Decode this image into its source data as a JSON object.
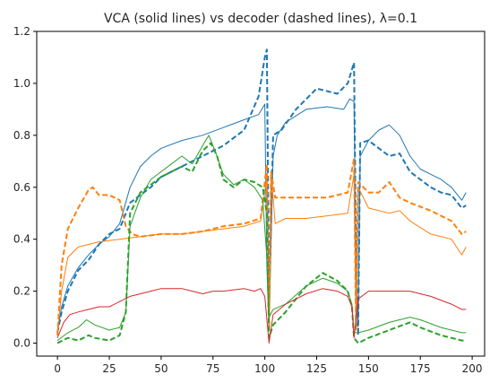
{
  "chart_data": {
    "type": "line",
    "title": "VCA (solid lines) vs decoder (dashed lines), λ=0.1",
    "xlabel": "",
    "ylabel": "",
    "xlim": [
      -10,
      206
    ],
    "ylim": [
      -0.05,
      1.2
    ],
    "xticks": [
      0,
      25,
      50,
      75,
      100,
      125,
      150,
      175,
      200
    ],
    "yticks": [
      0.0,
      0.2,
      0.4,
      0.6,
      0.8,
      1.0,
      1.2
    ],
    "xtick_labels": [
      "0",
      "25",
      "50",
      "75",
      "100",
      "125",
      "150",
      "175",
      "200"
    ],
    "ytick_labels": [
      "0.0",
      "0.2",
      "0.4",
      "0.6",
      "0.8",
      "1.0",
      "1.2"
    ],
    "grid": false,
    "legend": "none",
    "series": [
      {
        "color": "#1f77b4",
        "style": "solid",
        "points": [
          [
            0,
            0.04
          ],
          [
            2,
            0.14
          ],
          [
            5,
            0.22
          ],
          [
            10,
            0.29
          ],
          [
            15,
            0.34
          ],
          [
            20,
            0.38
          ],
          [
            25,
            0.41
          ],
          [
            30,
            0.46
          ],
          [
            35,
            0.6
          ],
          [
            40,
            0.68
          ],
          [
            45,
            0.72
          ],
          [
            50,
            0.75
          ],
          [
            60,
            0.78
          ],
          [
            70,
            0.8
          ],
          [
            80,
            0.83
          ],
          [
            90,
            0.86
          ],
          [
            97,
            0.88
          ],
          [
            100,
            0.92
          ],
          [
            101,
            0.3
          ],
          [
            102,
            0.05
          ],
          [
            104,
            0.72
          ],
          [
            106,
            0.8
          ],
          [
            110,
            0.85
          ],
          [
            120,
            0.9
          ],
          [
            130,
            0.91
          ],
          [
            138,
            0.9
          ],
          [
            141,
            0.94
          ],
          [
            143,
            0.93
          ],
          [
            144,
            0.25
          ],
          [
            145,
            0.07
          ],
          [
            146,
            0.72
          ],
          [
            150,
            0.78
          ],
          [
            155,
            0.82
          ],
          [
            160,
            0.84
          ],
          [
            165,
            0.8
          ],
          [
            170,
            0.72
          ],
          [
            175,
            0.67
          ],
          [
            180,
            0.65
          ],
          [
            185,
            0.63
          ],
          [
            190,
            0.6
          ],
          [
            195,
            0.55
          ],
          [
            197,
            0.58
          ]
        ]
      },
      {
        "color": "#1f77b4",
        "style": "dashed",
        "points": [
          [
            0,
            0.04
          ],
          [
            2,
            0.12
          ],
          [
            5,
            0.2
          ],
          [
            10,
            0.28
          ],
          [
            15,
            0.32
          ],
          [
            20,
            0.38
          ],
          [
            25,
            0.42
          ],
          [
            30,
            0.44
          ],
          [
            35,
            0.54
          ],
          [
            40,
            0.57
          ],
          [
            45,
            0.6
          ],
          [
            50,
            0.64
          ],
          [
            60,
            0.68
          ],
          [
            70,
            0.72
          ],
          [
            80,
            0.76
          ],
          [
            90,
            0.82
          ],
          [
            97,
            0.95
          ],
          [
            100,
            1.1
          ],
          [
            101,
            1.13
          ],
          [
            102,
            0.15
          ],
          [
            104,
            0.8
          ],
          [
            108,
            0.82
          ],
          [
            115,
            0.9
          ],
          [
            125,
            0.98
          ],
          [
            135,
            0.96
          ],
          [
            140,
            1.0
          ],
          [
            143,
            1.08
          ],
          [
            144,
            0.3
          ],
          [
            145,
            0.03
          ],
          [
            146,
            0.77
          ],
          [
            150,
            0.78
          ],
          [
            155,
            0.75
          ],
          [
            160,
            0.72
          ],
          [
            165,
            0.73
          ],
          [
            170,
            0.66
          ],
          [
            175,
            0.63
          ],
          [
            180,
            0.6
          ],
          [
            185,
            0.58
          ],
          [
            190,
            0.57
          ],
          [
            195,
            0.52
          ],
          [
            197,
            0.53
          ]
        ]
      },
      {
        "color": "#ff7f0e",
        "style": "solid",
        "points": [
          [
            0,
            0.03
          ],
          [
            2,
            0.2
          ],
          [
            5,
            0.33
          ],
          [
            10,
            0.37
          ],
          [
            20,
            0.39
          ],
          [
            30,
            0.4
          ],
          [
            40,
            0.41
          ],
          [
            50,
            0.42
          ],
          [
            60,
            0.42
          ],
          [
            70,
            0.43
          ],
          [
            80,
            0.44
          ],
          [
            90,
            0.45
          ],
          [
            98,
            0.47
          ],
          [
            101,
            0.64
          ],
          [
            102,
            0.05
          ],
          [
            103,
            0.66
          ],
          [
            105,
            0.46
          ],
          [
            110,
            0.48
          ],
          [
            120,
            0.48
          ],
          [
            130,
            0.49
          ],
          [
            140,
            0.5
          ],
          [
            143,
            0.65
          ],
          [
            144,
            0.05
          ],
          [
            145,
            0.6
          ],
          [
            150,
            0.52
          ],
          [
            160,
            0.5
          ],
          [
            165,
            0.51
          ],
          [
            170,
            0.47
          ],
          [
            180,
            0.42
          ],
          [
            190,
            0.4
          ],
          [
            195,
            0.34
          ],
          [
            197,
            0.37
          ]
        ]
      },
      {
        "color": "#ff7f0e",
        "style": "dashed",
        "points": [
          [
            0,
            0.03
          ],
          [
            2,
            0.3
          ],
          [
            5,
            0.44
          ],
          [
            10,
            0.52
          ],
          [
            15,
            0.59
          ],
          [
            17,
            0.6
          ],
          [
            20,
            0.57
          ],
          [
            25,
            0.57
          ],
          [
            30,
            0.55
          ],
          [
            33,
            0.45
          ],
          [
            36,
            0.42
          ],
          [
            40,
            0.41
          ],
          [
            50,
            0.42
          ],
          [
            60,
            0.42
          ],
          [
            70,
            0.43
          ],
          [
            80,
            0.45
          ],
          [
            90,
            0.46
          ],
          [
            98,
            0.48
          ],
          [
            101,
            0.69
          ],
          [
            102,
            0.05
          ],
          [
            103,
            0.66
          ],
          [
            105,
            0.56
          ],
          [
            110,
            0.56
          ],
          [
            120,
            0.56
          ],
          [
            130,
            0.56
          ],
          [
            140,
            0.58
          ],
          [
            143,
            0.71
          ],
          [
            144,
            0.05
          ],
          [
            145,
            0.62
          ],
          [
            150,
            0.58
          ],
          [
            155,
            0.58
          ],
          [
            160,
            0.62
          ],
          [
            165,
            0.56
          ],
          [
            170,
            0.54
          ],
          [
            180,
            0.51
          ],
          [
            190,
            0.47
          ],
          [
            195,
            0.42
          ],
          [
            197,
            0.43
          ]
        ]
      },
      {
        "color": "#2ca02c",
        "style": "solid",
        "points": [
          [
            0,
            0.01
          ],
          [
            5,
            0.04
          ],
          [
            10,
            0.06
          ],
          [
            14,
            0.09
          ],
          [
            18,
            0.07
          ],
          [
            25,
            0.05
          ],
          [
            30,
            0.06
          ],
          [
            33,
            0.12
          ],
          [
            35,
            0.45
          ],
          [
            40,
            0.56
          ],
          [
            45,
            0.63
          ],
          [
            50,
            0.66
          ],
          [
            55,
            0.69
          ],
          [
            60,
            0.72
          ],
          [
            65,
            0.69
          ],
          [
            70,
            0.76
          ],
          [
            73,
            0.8
          ],
          [
            76,
            0.74
          ],
          [
            80,
            0.65
          ],
          [
            85,
            0.61
          ],
          [
            90,
            0.63
          ],
          [
            95,
            0.6
          ],
          [
            99,
            0.55
          ],
          [
            101,
            0.33
          ],
          [
            102,
            0.1
          ],
          [
            104,
            0.13
          ],
          [
            110,
            0.15
          ],
          [
            120,
            0.22
          ],
          [
            128,
            0.25
          ],
          [
            135,
            0.23
          ],
          [
            140,
            0.2
          ],
          [
            142,
            0.15
          ],
          [
            143,
            0.04
          ],
          [
            145,
            0.04
          ],
          [
            150,
            0.05
          ],
          [
            160,
            0.08
          ],
          [
            170,
            0.1
          ],
          [
            175,
            0.09
          ],
          [
            185,
            0.06
          ],
          [
            195,
            0.04
          ],
          [
            197,
            0.04
          ]
        ]
      },
      {
        "color": "#2ca02c",
        "style": "dashed",
        "points": [
          [
            0,
            0.0
          ],
          [
            5,
            0.02
          ],
          [
            10,
            0.01
          ],
          [
            15,
            0.03
          ],
          [
            18,
            0.02
          ],
          [
            25,
            0.01
          ],
          [
            30,
            0.03
          ],
          [
            33,
            0.12
          ],
          [
            35,
            0.5
          ],
          [
            40,
            0.58
          ],
          [
            45,
            0.61
          ],
          [
            50,
            0.64
          ],
          [
            55,
            0.66
          ],
          [
            60,
            0.68
          ],
          [
            65,
            0.66
          ],
          [
            70,
            0.74
          ],
          [
            74,
            0.77
          ],
          [
            77,
            0.72
          ],
          [
            80,
            0.63
          ],
          [
            85,
            0.6
          ],
          [
            90,
            0.63
          ],
          [
            95,
            0.62
          ],
          [
            99,
            0.6
          ],
          [
            101,
            0.5
          ],
          [
            102,
            0.02
          ],
          [
            104,
            0.07
          ],
          [
            110,
            0.12
          ],
          [
            120,
            0.22
          ],
          [
            128,
            0.27
          ],
          [
            135,
            0.24
          ],
          [
            140,
            0.2
          ],
          [
            142,
            0.14
          ],
          [
            143,
            0.02
          ],
          [
            145,
            0.0
          ],
          [
            150,
            0.02
          ],
          [
            160,
            0.05
          ],
          [
            170,
            0.08
          ],
          [
            175,
            0.06
          ],
          [
            185,
            0.03
          ],
          [
            195,
            0.01
          ],
          [
            197,
            0.01
          ]
        ]
      },
      {
        "color": "#d62728",
        "style": "solid",
        "points": [
          [
            0,
            0.02
          ],
          [
            3,
            0.08
          ],
          [
            6,
            0.11
          ],
          [
            10,
            0.12
          ],
          [
            15,
            0.13
          ],
          [
            20,
            0.14
          ],
          [
            25,
            0.14
          ],
          [
            30,
            0.16
          ],
          [
            35,
            0.18
          ],
          [
            40,
            0.19
          ],
          [
            45,
            0.2
          ],
          [
            50,
            0.21
          ],
          [
            60,
            0.21
          ],
          [
            65,
            0.2
          ],
          [
            70,
            0.19
          ],
          [
            75,
            0.2
          ],
          [
            80,
            0.2
          ],
          [
            90,
            0.21
          ],
          [
            95,
            0.2
          ],
          [
            98,
            0.21
          ],
          [
            100,
            0.18
          ],
          [
            102,
            0.0
          ],
          [
            104,
            0.11
          ],
          [
            110,
            0.15
          ],
          [
            120,
            0.19
          ],
          [
            128,
            0.21
          ],
          [
            135,
            0.2
          ],
          [
            140,
            0.18
          ],
          [
            142,
            0.14
          ],
          [
            143,
            0.02
          ],
          [
            145,
            0.17
          ],
          [
            150,
            0.2
          ],
          [
            160,
            0.2
          ],
          [
            170,
            0.2
          ],
          [
            180,
            0.18
          ],
          [
            190,
            0.15
          ],
          [
            195,
            0.13
          ],
          [
            197,
            0.13
          ]
        ]
      }
    ]
  }
}
